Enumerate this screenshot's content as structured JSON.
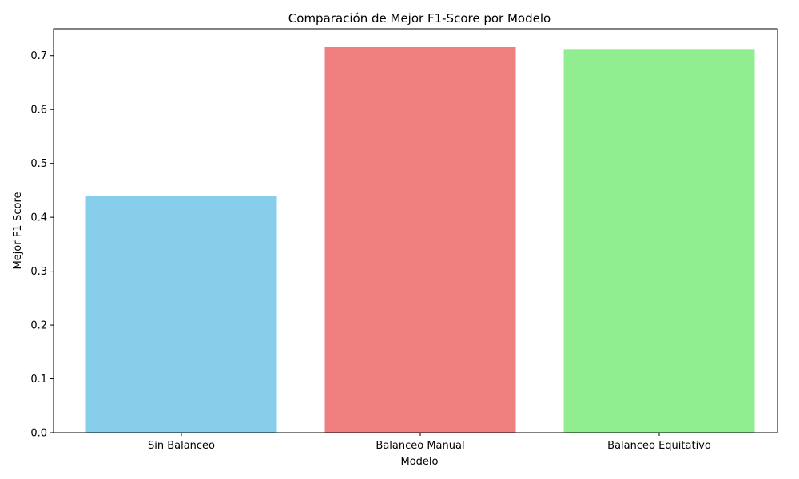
{
  "chart_data": {
    "type": "bar",
    "title": "Comparación de Mejor F1-Score por Modelo",
    "xlabel": "Modelo",
    "ylabel": "Mejor F1-Score",
    "categories": [
      "Sin Balanceo",
      "Balanceo Manual",
      "Balanceo Equitativo"
    ],
    "values": [
      0.44,
      0.716,
      0.711
    ],
    "colors": [
      "#87CEEB",
      "#F08080",
      "#90EE90"
    ],
    "ylim": [
      0,
      0.75
    ],
    "yticks": [
      0.0,
      0.1,
      0.2,
      0.3,
      0.4,
      0.5,
      0.6,
      0.7
    ],
    "ytick_labels": [
      "0.0",
      "0.1",
      "0.2",
      "0.3",
      "0.4",
      "0.5",
      "0.6",
      "0.7"
    ],
    "grid": false,
    "legend": "none"
  }
}
